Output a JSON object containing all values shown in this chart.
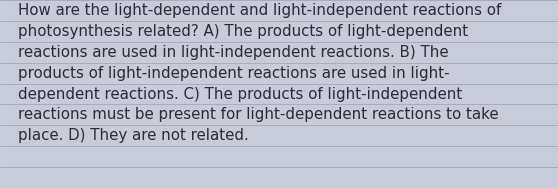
{
  "background_color": "#c8ccd8",
  "line_color": "#a8acbc",
  "text_color": "#2a2c38",
  "font_size": 10.8,
  "lines": [
    "How are the light-dependent and light-independent reactions of",
    "photosynthesis related? A) The products of light-dependent",
    "reactions are used in light-independent reactions. B) The",
    "products of light-independent reactions are used in light-",
    "dependent reactions. C) The products of light-independent",
    "reactions must be present for light-dependent reactions to take",
    "place. D) They are not related."
  ],
  "fig_width": 5.58,
  "fig_height": 1.88,
  "dpi": 100
}
